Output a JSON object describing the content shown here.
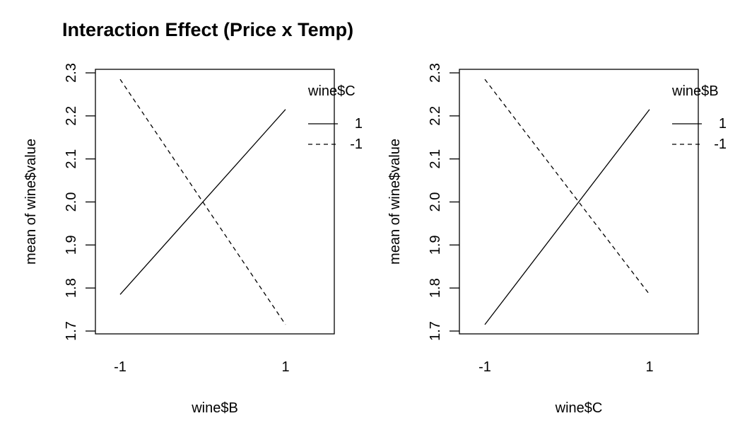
{
  "title": "Interaction Effect (Price x Temp)",
  "chart_data": [
    {
      "type": "line",
      "x": [
        "-1",
        "1"
      ],
      "xlabel": "wine$B",
      "ylabel": "mean of  wine$value",
      "ylim": [
        1.7,
        2.3
      ],
      "yticks": [
        "1.7",
        "1.8",
        "1.9",
        "2.0",
        "2.1",
        "2.2",
        "2.3"
      ],
      "grid": false,
      "legend": {
        "title": "wine$C",
        "position": "top-right"
      },
      "series": [
        {
          "name": "1",
          "style": "solid",
          "values": [
            1.785,
            2.215
          ]
        },
        {
          "name": "-1",
          "style": "dashed",
          "values": [
            2.285,
            1.715
          ]
        }
      ]
    },
    {
      "type": "line",
      "x": [
        "-1",
        "1"
      ],
      "xlabel": "wine$C",
      "ylabel": "mean of  wine$value",
      "ylim": [
        1.7,
        2.3
      ],
      "yticks": [
        "1.7",
        "1.8",
        "1.9",
        "2.0",
        "2.1",
        "2.2",
        "2.3"
      ],
      "grid": false,
      "legend": {
        "title": "wine$B",
        "position": "top-right"
      },
      "series": [
        {
          "name": "1",
          "style": "solid",
          "values": [
            1.715,
            2.215
          ]
        },
        {
          "name": "-1",
          "style": "dashed",
          "values": [
            2.285,
            1.785
          ]
        }
      ]
    }
  ]
}
